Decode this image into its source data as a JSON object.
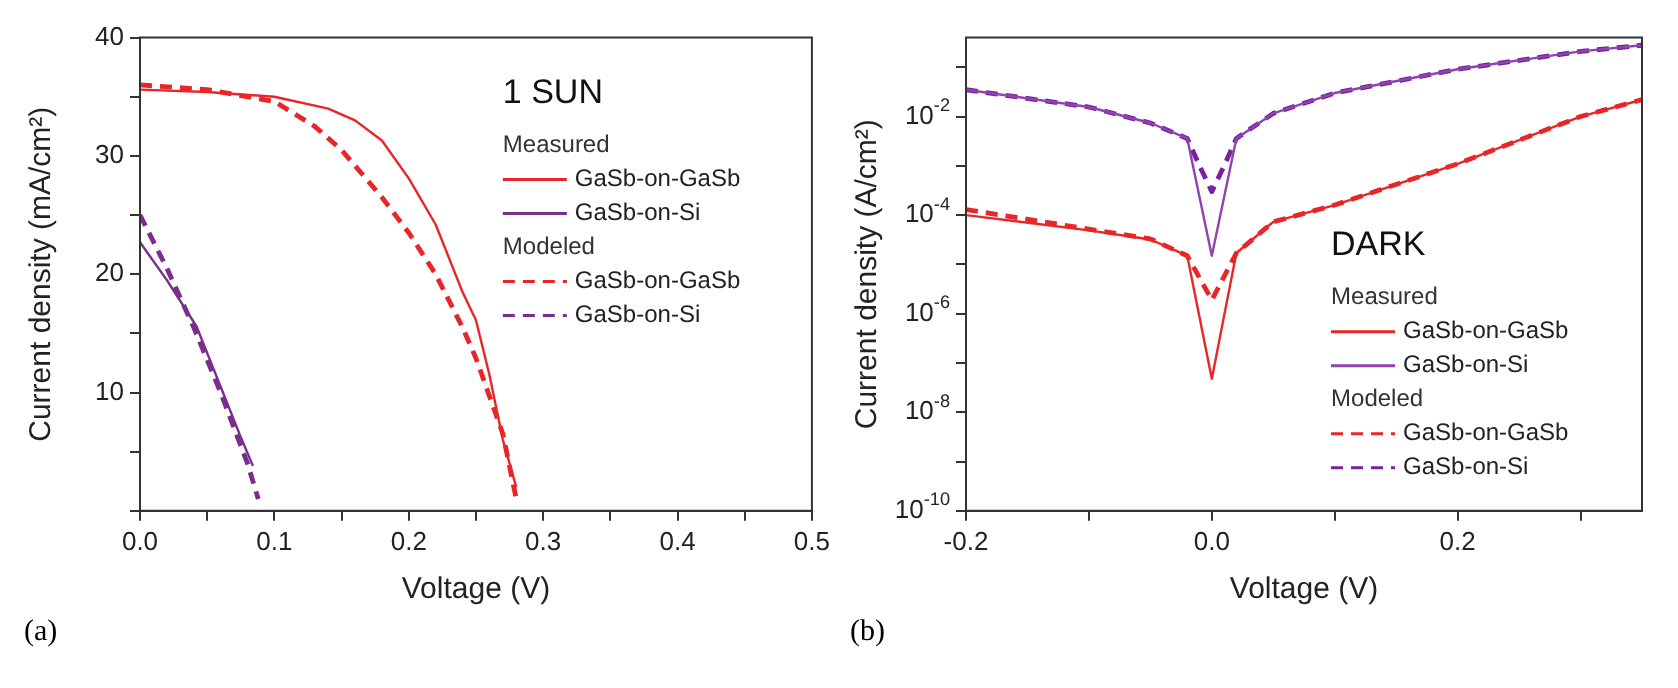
{
  "chart_data": [
    {
      "type": "line",
      "xlabel": "Voltage (V)",
      "ylabel": "Current density (mA/cm²)",
      "xlim": [
        0,
        0.5
      ],
      "ylim": [
        0,
        40
      ],
      "xticks": [
        {
          "value": 0,
          "label": "0.0"
        },
        {
          "value": 0.05,
          "label": null
        },
        {
          "value": 0.1,
          "label": "0.1"
        },
        {
          "value": 0.15,
          "label": null
        },
        {
          "value": 0.2,
          "label": "0.2"
        },
        {
          "value": 0.25,
          "label": null
        },
        {
          "value": 0.3,
          "label": "0.3"
        },
        {
          "value": 0.35,
          "label": null
        },
        {
          "value": 0.4,
          "label": "0.4"
        },
        {
          "value": 0.45,
          "label": null
        },
        {
          "value": 0.5,
          "label": "0.5"
        }
      ],
      "yticks": [
        {
          "value": 0,
          "label": null
        },
        {
          "value": 5,
          "label": null
        },
        10,
        {
          "value": 15,
          "label": null
        },
        20,
        {
          "value": 25,
          "label": null
        },
        30,
        {
          "value": 35,
          "label": null
        },
        40
      ],
      "marker": "none",
      "legend": "top right",
      "annotations": [
        "1 SUN",
        "Measured",
        "Modeled",
        "(a)"
      ],
      "series": [
        {
          "name": "GaSb-on-GaSb",
          "color": "#e8262a",
          "line_style": "solid",
          "x": [
            0,
            0.05,
            0.1,
            0.14,
            0.16,
            0.18,
            0.2,
            0.22,
            0.24,
            0.25,
            0.26,
            0.27,
            0.28
          ],
          "values": [
            35.6,
            35.4,
            35.0,
            34.0,
            33.0,
            31.3,
            28.1,
            24.2,
            18.5,
            16.1,
            11.5,
            6,
            2
          ]
        },
        {
          "name": "GaSb-on-Si",
          "color": "#7b2d8e",
          "line_style": "solid",
          "x": [
            0,
            0.02,
            0.042,
            0.06,
            0.074,
            0.084
          ],
          "values": [
            22.7,
            19.5,
            15.6,
            10.5,
            6.5,
            3.8
          ]
        },
        {
          "name": "GaSb-on-GaSb",
          "color": "#e8262a",
          "line_style": "dashed",
          "x": [
            0,
            0.05,
            0.1,
            0.13,
            0.15,
            0.18,
            0.2,
            0.22,
            0.24,
            0.25,
            0.27,
            0.28
          ],
          "values": [
            36.0,
            35.6,
            34.6,
            32.5,
            30.5,
            26.5,
            23.5,
            20,
            15.5,
            12.9,
            6.5,
            1
          ]
        },
        {
          "name": "GaSb-on-Si",
          "color": "#7b2d8e",
          "line_style": "dashed",
          "x": [
            0,
            0.02,
            0.04,
            0.06,
            0.08,
            0.088
          ],
          "values": [
            25,
            20.5,
            15.5,
            10,
            4,
            1
          ]
        }
      ]
    },
    {
      "type": "line",
      "xlabel": "Voltage (V)",
      "ylabel": "Current density (A/cm²)",
      "log": "y",
      "xlim": [
        -0.2,
        0.35
      ],
      "ylim": [
        1e-10,
        0.4
      ],
      "xticks": [
        {
          "value": -0.2,
          "label": "-0.2"
        },
        {
          "value": -0.1,
          "label": null
        },
        {
          "value": 0,
          "label": "0.0"
        },
        {
          "value": 0.1,
          "label": null
        },
        {
          "value": 0.2,
          "label": "0.2"
        },
        {
          "value": 0.3,
          "label": null
        }
      ],
      "yticks": [
        {
          "value": 1e-10,
          "label": "10$^{-10}$"
        },
        {
          "value": 1e-09,
          "label": null
        },
        {
          "value": 1e-08,
          "label": "10$^{-8}$"
        },
        {
          "value": 1e-07,
          "label": null
        },
        {
          "value": 1e-06,
          "label": "10$^{-6}$"
        },
        {
          "value": 1e-05,
          "label": null
        },
        {
          "value": 0.0001,
          "label": "10$^{-4}$"
        },
        {
          "value": 0.001,
          "label": null
        },
        {
          "value": 0.01,
          "label": "10$^{-2}$"
        },
        {
          "value": 0.1,
          "label": null
        }
      ],
      "marker": "none",
      "legend": "bottom right",
      "annotations": [
        "DARK",
        "Measured",
        "Modeled",
        "(b)"
      ],
      "series": [
        {
          "name": "GaSb-on-GaSb",
          "color": "#e8262a",
          "line_style": "solid",
          "x": [
            -0.2,
            -0.1,
            -0.05,
            -0.02,
            0,
            0.02,
            0.05,
            0.1,
            0.2,
            0.3,
            0.35
          ],
          "values": [
            0.0001,
            4.9e-05,
            3.2e-05,
            1.5e-05,
            4.8e-08,
            1.7e-05,
            7.3e-05,
            0.00016,
            0.0011,
            0.01,
            0.022
          ]
        },
        {
          "name": "GaSb-on-Si",
          "color": "#8e44ad",
          "line_style": "solid",
          "x": [
            -0.2,
            -0.1,
            -0.05,
            -0.02,
            0,
            0.02,
            0.05,
            0.1,
            0.2,
            0.3,
            0.35
          ],
          "values": [
            0.035,
            0.0156,
            0.0074,
            0.0036,
            1.5e-05,
            0.0036,
            0.0116,
            0.03,
            0.091,
            0.21,
            0.28
          ]
        },
        {
          "name": "GaSb-on-GaSb",
          "color": "#e8262a",
          "line_style": "dashed",
          "x": [
            -0.2,
            -0.1,
            -0.05,
            -0.02,
            0,
            0.02,
            0.05,
            0.1,
            0.2,
            0.3,
            0.35
          ],
          "values": [
            0.00013,
            5.2e-05,
            3.3e-05,
            1.5e-05,
            1.9e-06,
            1.7e-05,
            7.3e-05,
            0.00016,
            0.0011,
            0.01,
            0.022
          ]
        },
        {
          "name": "GaSb-on-Si",
          "color": "#7a1fa0",
          "line_style": "dashed",
          "x": [
            -0.2,
            -0.1,
            -0.05,
            -0.02,
            -0.01,
            0,
            0.01,
            0.02,
            0.05,
            0.1,
            0.2,
            0.3,
            0.35
          ],
          "values": [
            0.035,
            0.0156,
            0.0074,
            0.0036,
            0.001,
            0.0003,
            0.001,
            0.0036,
            0.0116,
            0.03,
            0.091,
            0.21,
            0.28
          ]
        }
      ]
    }
  ]
}
